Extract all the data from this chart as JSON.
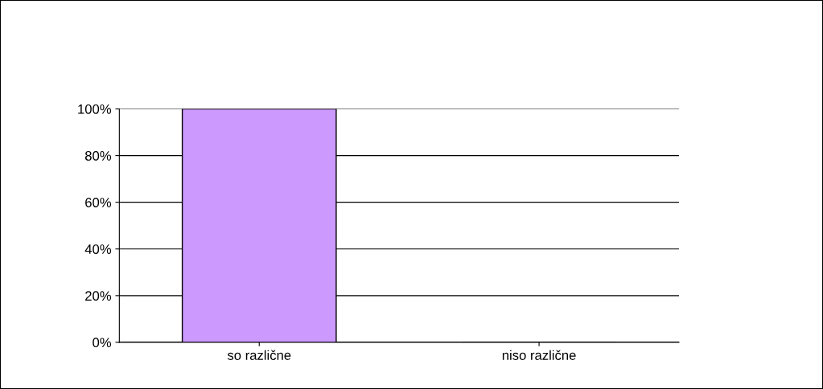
{
  "chart_data": {
    "type": "bar",
    "categories": [
      "so različne",
      "niso različne"
    ],
    "values": [
      100,
      0
    ],
    "color": "#cc99ff",
    "ylim": [
      0,
      100
    ],
    "yticks": [
      {
        "value": 0,
        "label": "0%"
      },
      {
        "value": 20,
        "label": "20%"
      },
      {
        "value": 40,
        "label": "40%"
      },
      {
        "value": 60,
        "label": "60%"
      },
      {
        "value": 80,
        "label": "80%"
      },
      {
        "value": 100,
        "label": "100%"
      }
    ],
    "grid": "y"
  }
}
